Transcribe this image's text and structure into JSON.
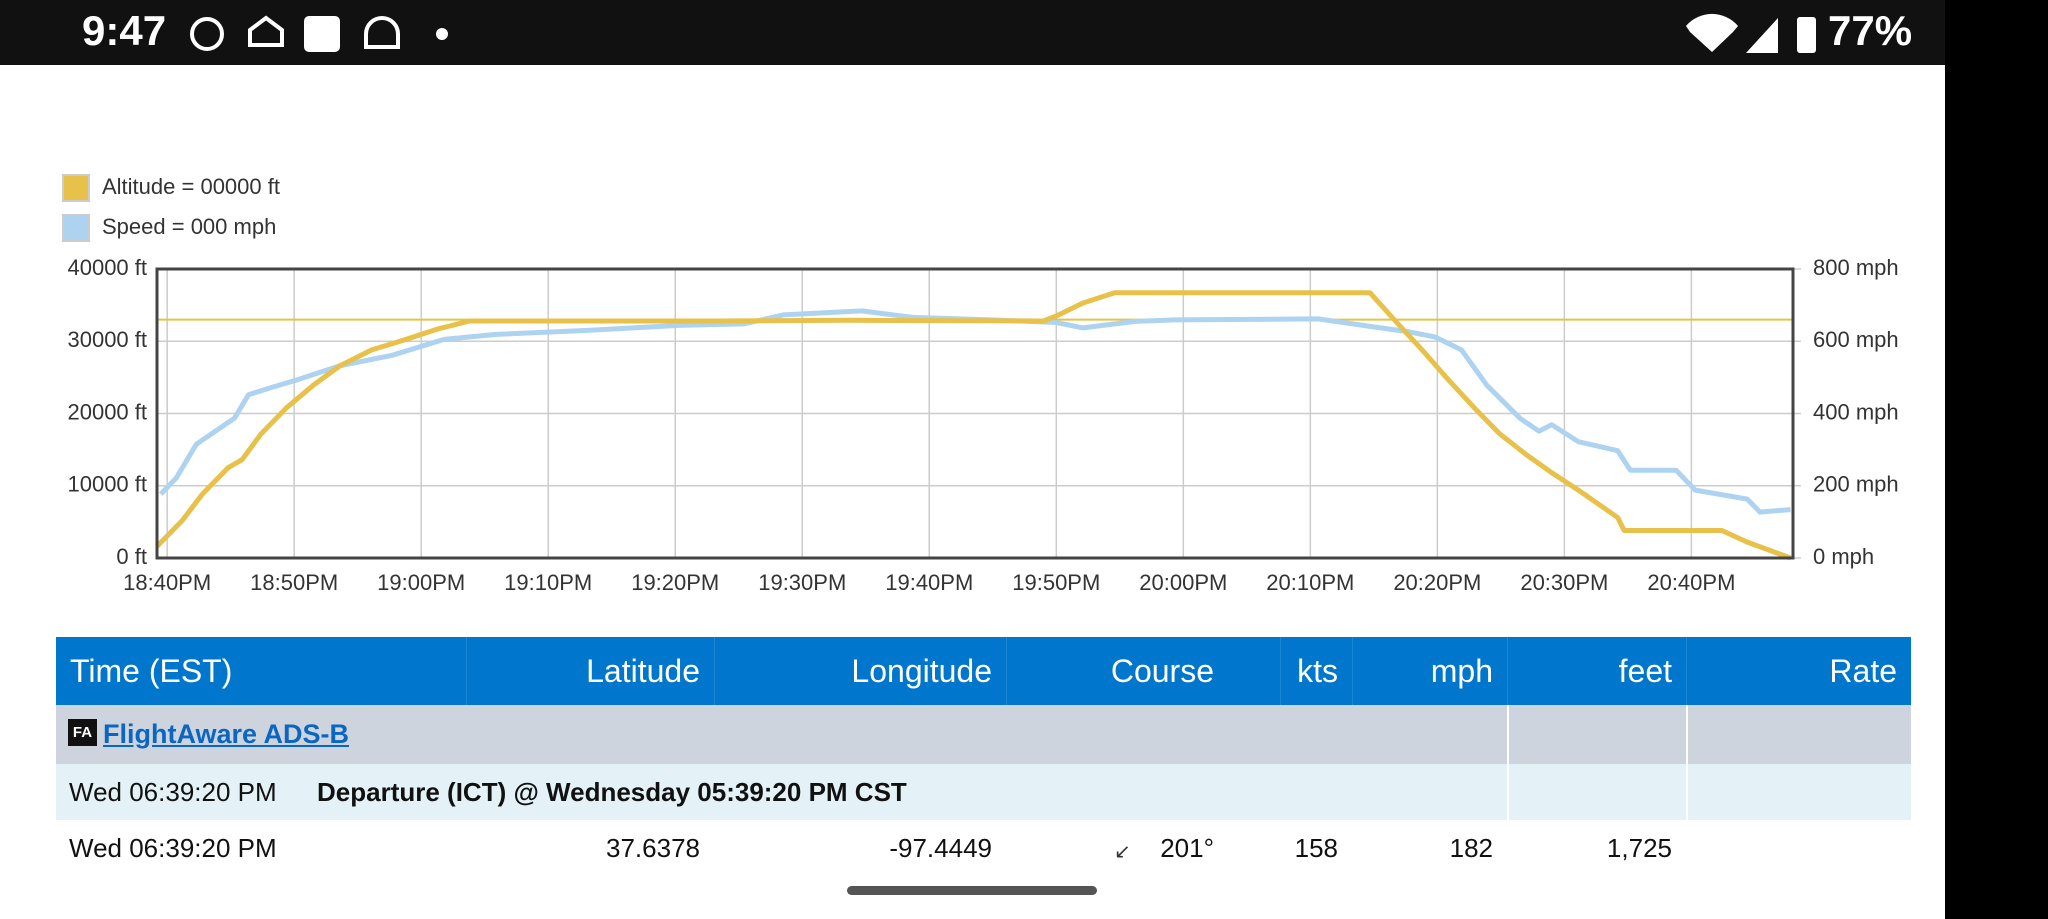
{
  "status_bar": {
    "time": "9:47",
    "battery": "77%"
  },
  "chart_data": {
    "type": "line",
    "legend": "top-left",
    "grid": true,
    "xlim": [
      1119.2,
      1248
    ],
    "xticks": [
      {
        "value": 1120,
        "label": "18:40PM"
      },
      {
        "value": 1130,
        "label": "18:50PM"
      },
      {
        "value": 1140,
        "label": "19:00PM"
      },
      {
        "value": 1150,
        "label": "19:10PM"
      },
      {
        "value": 1160,
        "label": "19:20PM"
      },
      {
        "value": 1170,
        "label": "19:30PM"
      },
      {
        "value": 1180,
        "label": "19:40PM"
      },
      {
        "value": 1190,
        "label": "19:50PM"
      },
      {
        "value": 1200,
        "label": "20:00PM"
      },
      {
        "value": 1210,
        "label": "20:10PM"
      },
      {
        "value": 1220,
        "label": "20:20PM"
      },
      {
        "value": 1230,
        "label": "20:30PM"
      },
      {
        "value": 1240,
        "label": "20:40PM"
      }
    ],
    "ylim": [
      0,
      40000
    ],
    "yticks": [
      {
        "value": 0,
        "label": "0 ft"
      },
      {
        "value": 10000,
        "label": "10000 ft"
      },
      {
        "value": 20000,
        "label": "20000 ft"
      },
      {
        "value": 30000,
        "label": "30000 ft"
      },
      {
        "value": 40000,
        "label": "40000 ft"
      }
    ],
    "y2lim": [
      0,
      800
    ],
    "y2ticks": [
      {
        "value": 0,
        "label": "0 mph"
      },
      {
        "value": 200,
        "label": "200 mph"
      },
      {
        "value": 400,
        "label": "400 mph"
      },
      {
        "value": 600,
        "label": "600 mph"
      },
      {
        "value": 800,
        "label": "800 mph"
      }
    ],
    "reference_line": {
      "value": 33000,
      "color": "#e8c14a"
    },
    "series": [
      {
        "name": "Altitude = 00000 ft",
        "color": "#e8c14a",
        "x": [
          1119.2,
          1121.2,
          1122.8,
          1124.8,
          1125.9,
          1127.4,
          1129.4,
          1131.5,
          1133.6,
          1136.1,
          1138.7,
          1141.3,
          1143.8,
          1147.9,
          1163.3,
          1173.6,
          1189,
          1190,
          1192.1,
          1194.6,
          1204.4,
          1214.7,
          1216.7,
          1218.8,
          1220.8,
          1222.9,
          1224.9,
          1227,
          1229,
          1231.1,
          1234.2,
          1234.7,
          1242.4,
          1244.4,
          1247.8
        ],
        "values": [
          1600,
          5200,
          8900,
          12500,
          13600,
          17200,
          20800,
          23900,
          26600,
          28800,
          30200,
          31700,
          32800,
          32800,
          32800,
          32900,
          32800,
          33500,
          35300,
          36700,
          36700,
          36700,
          32800,
          28800,
          24800,
          20800,
          17200,
          14300,
          11800,
          9400,
          5600,
          3800,
          3800,
          2200,
          0
        ]
      },
      {
        "name": "Speed = 000 mph",
        "color": "#aed3f0",
        "axis": "y2",
        "x": [
          1119.5,
          1120.7,
          1122.3,
          1123.8,
          1125.3,
          1126.4,
          1128.4,
          1130.5,
          1133.6,
          1137.7,
          1141.8,
          1145.9,
          1153.1,
          1160.3,
          1165.4,
          1168.5,
          1174.7,
          1178.7,
          1184.9,
          1190,
          1192.1,
          1196.2,
          1199.3,
          1210.6,
          1214.7,
          1217.8,
          1219.8,
          1221.9,
          1223.9,
          1226.5,
          1228,
          1229,
          1231.1,
          1234.2,
          1235.2,
          1238.8,
          1240.3,
          1244.4,
          1245.4,
          1247.8
        ],
        "values": [
          177,
          221,
          315,
          351,
          387,
          452,
          474,
          496,
          532,
          561,
          605,
          619,
          630,
          644,
          648,
          673,
          684,
          666,
          659,
          652,
          637,
          655,
          659,
          662,
          641,
          626,
          612,
          576,
          478,
          387,
          351,
          369,
          322,
          297,
          243,
          243,
          188,
          163,
          127,
          134
        ]
      }
    ]
  },
  "table": {
    "header": [
      "Time (EST)",
      "Latitude",
      "Longitude",
      "Course",
      "kts",
      "mph",
      "feet",
      "Rate"
    ],
    "source": "FlightAware ADS-B",
    "source_icon": "FA",
    "departure": [
      "Wed 06:39:20 PM",
      "Departure (ICT) @ Wednesday 05:39:20 PM CST"
    ],
    "rows": [
      [
        "Wed 06:39:20 PM",
        "37.6378",
        "-97.4449",
        "201°",
        "158",
        "182",
        "1,725"
      ]
    ]
  }
}
